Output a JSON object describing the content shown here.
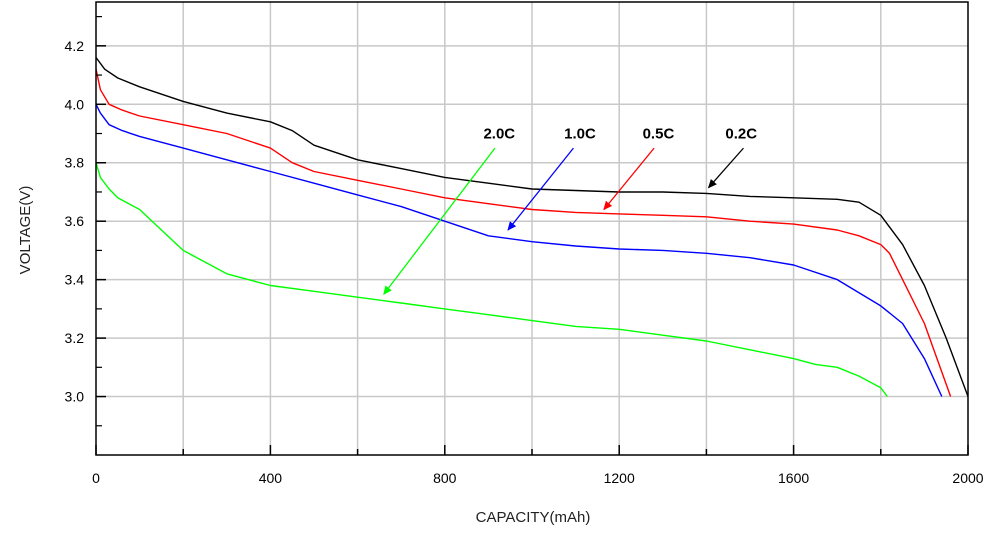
{
  "chart_data": {
    "type": "line",
    "xlabel": "CAPACITY(mAh)",
    "ylabel": "VOLTAGE(V)",
    "xlim": [
      0,
      2000
    ],
    "ylim": [
      2.8,
      4.35
    ],
    "x_ticks": [
      0,
      400,
      800,
      1200,
      1600,
      2000
    ],
    "x_tick_labels": [
      "0",
      "400",
      "800",
      "1200",
      "1600",
      "2000"
    ],
    "x_minor_ticks": [
      200,
      600,
      1000,
      1400,
      1800
    ],
    "y_ticks": [
      3.0,
      3.2,
      3.4,
      3.6,
      3.8,
      4.0,
      4.2
    ],
    "y_tick_labels": [
      "3.0",
      "3.2",
      "3.4",
      "3.6",
      "3.8",
      "4.0",
      "4.2"
    ],
    "grid": true,
    "series": [
      {
        "name": "0.2C",
        "color": "#000000",
        "points": [
          [
            0,
            4.16
          ],
          [
            20,
            4.12
          ],
          [
            50,
            4.09
          ],
          [
            100,
            4.06
          ],
          [
            200,
            4.01
          ],
          [
            300,
            3.97
          ],
          [
            400,
            3.94
          ],
          [
            450,
            3.91
          ],
          [
            500,
            3.86
          ],
          [
            600,
            3.81
          ],
          [
            700,
            3.78
          ],
          [
            800,
            3.75
          ],
          [
            900,
            3.73
          ],
          [
            1000,
            3.71
          ],
          [
            1100,
            3.705
          ],
          [
            1200,
            3.7
          ],
          [
            1300,
            3.7
          ],
          [
            1400,
            3.695
          ],
          [
            1500,
            3.685
          ],
          [
            1600,
            3.68
          ],
          [
            1700,
            3.675
          ],
          [
            1750,
            3.665
          ],
          [
            1800,
            3.62
          ],
          [
            1850,
            3.52
          ],
          [
            1900,
            3.38
          ],
          [
            1950,
            3.2
          ],
          [
            2000,
            3.0
          ]
        ]
      },
      {
        "name": "0.5C",
        "color": "#ff0000",
        "points": [
          [
            0,
            4.12
          ],
          [
            10,
            4.05
          ],
          [
            30,
            4.0
          ],
          [
            60,
            3.98
          ],
          [
            100,
            3.96
          ],
          [
            200,
            3.93
          ],
          [
            300,
            3.9
          ],
          [
            400,
            3.85
          ],
          [
            450,
            3.8
          ],
          [
            500,
            3.77
          ],
          [
            600,
            3.74
          ],
          [
            700,
            3.71
          ],
          [
            800,
            3.68
          ],
          [
            900,
            3.66
          ],
          [
            1000,
            3.64
          ],
          [
            1100,
            3.63
          ],
          [
            1200,
            3.625
          ],
          [
            1300,
            3.62
          ],
          [
            1400,
            3.615
          ],
          [
            1500,
            3.6
          ],
          [
            1600,
            3.59
          ],
          [
            1700,
            3.57
          ],
          [
            1750,
            3.55
          ],
          [
            1800,
            3.52
          ],
          [
            1820,
            3.49
          ],
          [
            1850,
            3.4
          ],
          [
            1900,
            3.25
          ],
          [
            1960,
            3.0
          ]
        ]
      },
      {
        "name": "1.0C",
        "color": "#0000ff",
        "points": [
          [
            0,
            4.0
          ],
          [
            10,
            3.97
          ],
          [
            30,
            3.93
          ],
          [
            60,
            3.91
          ],
          [
            100,
            3.89
          ],
          [
            200,
            3.85
          ],
          [
            300,
            3.81
          ],
          [
            400,
            3.77
          ],
          [
            500,
            3.73
          ],
          [
            600,
            3.69
          ],
          [
            700,
            3.65
          ],
          [
            800,
            3.6
          ],
          [
            900,
            3.55
          ],
          [
            1000,
            3.53
          ],
          [
            1100,
            3.515
          ],
          [
            1200,
            3.505
          ],
          [
            1300,
            3.5
          ],
          [
            1400,
            3.49
          ],
          [
            1500,
            3.475
          ],
          [
            1600,
            3.45
          ],
          [
            1700,
            3.4
          ],
          [
            1800,
            3.31
          ],
          [
            1850,
            3.25
          ],
          [
            1900,
            3.13
          ],
          [
            1940,
            3.0
          ]
        ]
      },
      {
        "name": "2.0C",
        "color": "#00ff00",
        "points": [
          [
            0,
            3.8
          ],
          [
            10,
            3.75
          ],
          [
            30,
            3.71
          ],
          [
            50,
            3.68
          ],
          [
            100,
            3.64
          ],
          [
            150,
            3.57
          ],
          [
            200,
            3.5
          ],
          [
            300,
            3.42
          ],
          [
            400,
            3.38
          ],
          [
            500,
            3.36
          ],
          [
            600,
            3.34
          ],
          [
            700,
            3.32
          ],
          [
            800,
            3.3
          ],
          [
            900,
            3.28
          ],
          [
            1000,
            3.26
          ],
          [
            1100,
            3.24
          ],
          [
            1200,
            3.23
          ],
          [
            1300,
            3.21
          ],
          [
            1400,
            3.19
          ],
          [
            1500,
            3.16
          ],
          [
            1600,
            3.13
          ],
          [
            1650,
            3.11
          ],
          [
            1700,
            3.1
          ],
          [
            1750,
            3.07
          ],
          [
            1800,
            3.03
          ],
          [
            1815,
            3.0
          ]
        ]
      }
    ],
    "annotations": [
      {
        "text": "2.0C",
        "label_x": 925,
        "label_y": 3.9,
        "arrow_from": [
          915,
          3.85
        ],
        "arrow_to": [
          660,
          3.35
        ],
        "color": "#00ff00"
      },
      {
        "text": "1.0C",
        "label_x": 1110,
        "label_y": 3.9,
        "arrow_from": [
          1095,
          3.85
        ],
        "arrow_to": [
          945,
          3.57
        ],
        "color": "#0000ff"
      },
      {
        "text": "0.5C",
        "label_x": 1290,
        "label_y": 3.9,
        "arrow_from": [
          1280,
          3.85
        ],
        "arrow_to": [
          1165,
          3.64
        ],
        "color": "#ff0000"
      },
      {
        "text": "0.2C",
        "label_x": 1480,
        "label_y": 3.9,
        "arrow_from": [
          1485,
          3.85
        ],
        "arrow_to": [
          1405,
          3.715
        ],
        "color": "#000000"
      }
    ]
  }
}
